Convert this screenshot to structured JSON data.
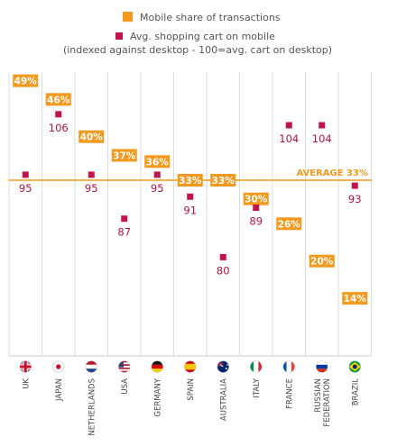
{
  "legend": {
    "mobile_share": "Mobile share of transactions",
    "cart_line1": "Avg. shopping cart on mobile",
    "cart_line2": "(indexed against desktop - 100=avg. cart on desktop)"
  },
  "average_label": "AVERAGE 33%",
  "colors": {
    "orange": "#f39a1e",
    "crimson": "#c4134a",
    "grid": "#dddddd"
  },
  "chart_data": {
    "type": "scatter",
    "categories": [
      "UK",
      "JAPAN",
      "NETHERLANDS",
      "USA",
      "GERMANY",
      "SPAIN",
      "AUSTRALIA",
      "ITALY",
      "FRANCE",
      "RUSSIAN FEDERATION",
      "BRAZIL"
    ],
    "flags": [
      "uk-flag-icon",
      "japan-flag-icon",
      "netherlands-flag-icon",
      "usa-flag-icon",
      "germany-flag-icon",
      "spain-flag-icon",
      "australia-flag-icon",
      "italy-flag-icon",
      "france-flag-icon",
      "russia-flag-icon",
      "brazil-flag-icon"
    ],
    "series": [
      {
        "name": "Mobile share of transactions",
        "values": [
          49,
          46,
          40,
          37,
          36,
          33,
          33,
          30,
          26,
          20,
          14
        ],
        "labels": [
          "49%",
          "46%",
          "40%",
          "37%",
          "36%",
          "33%",
          "33%",
          "30%",
          "26%",
          "20%",
          "14%"
        ]
      },
      {
        "name": "Avg. shopping cart on mobile",
        "values": [
          95,
          106,
          95,
          87,
          95,
          91,
          80,
          89,
          104,
          104,
          93
        ],
        "labels": [
          "95",
          "106",
          "95",
          "87",
          "95",
          "91",
          "80",
          "89",
          "104",
          "104",
          "93"
        ]
      }
    ],
    "average": 33
  }
}
